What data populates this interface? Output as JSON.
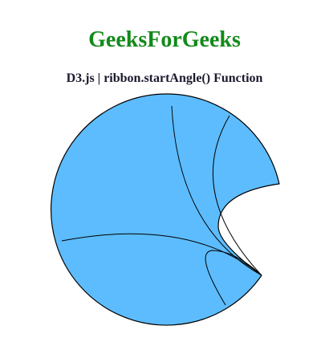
{
  "header": {
    "title": "GeeksForGeeks",
    "subtitle": "D3.js | ribbon.startAngle() Function"
  },
  "colors": {
    "title": "#138a1a",
    "subtitle": "#1a1a2e",
    "ribbon_fill": "#5dbcfd",
    "ribbon_stroke": "#000000",
    "background": "#ffffff"
  }
}
